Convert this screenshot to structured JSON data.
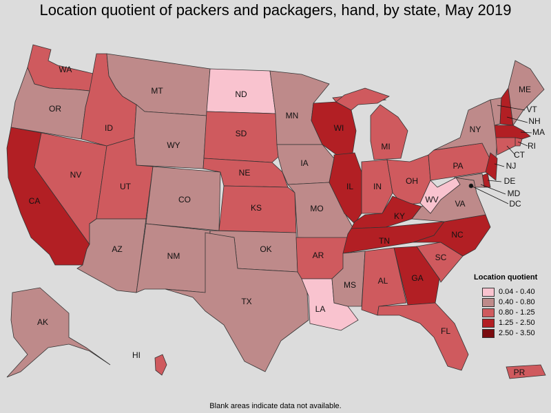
{
  "title": "Location quotient of packers and packagers, hand, by state, May 2019",
  "note": "Blank areas indicate data not available.",
  "legend": {
    "title": "Location quotient",
    "items": [
      {
        "label": "0.04 - 0.40",
        "color": "#f9c3cf"
      },
      {
        "label": "0.40 - 0.80",
        "color": "#be8a8a"
      },
      {
        "label": "0.80 - 1.25",
        "color": "#cf5a5e"
      },
      {
        "label": "1.25 - 2.50",
        "color": "#b21f24"
      },
      {
        "label": "2.50 - 3.50",
        "color": "#7a0c10"
      }
    ]
  },
  "map": {
    "background": "#dcdcdc",
    "states": [
      {
        "abbr": "WA",
        "class": 3
      },
      {
        "abbr": "OR",
        "class": 2
      },
      {
        "abbr": "CA",
        "class": 4
      },
      {
        "abbr": "NV",
        "class": 3
      },
      {
        "abbr": "ID",
        "class": 3
      },
      {
        "abbr": "MT",
        "class": 2
      },
      {
        "abbr": "WY",
        "class": 2
      },
      {
        "abbr": "UT",
        "class": 3
      },
      {
        "abbr": "AZ",
        "class": 2
      },
      {
        "abbr": "CO",
        "class": 2
      },
      {
        "abbr": "NM",
        "class": 2
      },
      {
        "abbr": "ND",
        "class": 1
      },
      {
        "abbr": "SD",
        "class": 3
      },
      {
        "abbr": "NE",
        "class": 3
      },
      {
        "abbr": "KS",
        "class": 3
      },
      {
        "abbr": "OK",
        "class": 2
      },
      {
        "abbr": "TX",
        "class": 2
      },
      {
        "abbr": "MN",
        "class": 2
      },
      {
        "abbr": "IA",
        "class": 2
      },
      {
        "abbr": "MO",
        "class": 2
      },
      {
        "abbr": "AR",
        "class": 3
      },
      {
        "abbr": "LA",
        "class": 1
      },
      {
        "abbr": "WI",
        "class": 4
      },
      {
        "abbr": "IL",
        "class": 4
      },
      {
        "abbr": "MI",
        "class": 3
      },
      {
        "abbr": "IN",
        "class": 3
      },
      {
        "abbr": "OH",
        "class": 3
      },
      {
        "abbr": "KY",
        "class": 4
      },
      {
        "abbr": "TN",
        "class": 4
      },
      {
        "abbr": "MS",
        "class": 2
      },
      {
        "abbr": "AL",
        "class": 3
      },
      {
        "abbr": "GA",
        "class": 4
      },
      {
        "abbr": "FL",
        "class": 3
      },
      {
        "abbr": "SC",
        "class": 3
      },
      {
        "abbr": "NC",
        "class": 4
      },
      {
        "abbr": "VA",
        "class": 2
      },
      {
        "abbr": "WV",
        "class": 1
      },
      {
        "abbr": "PA",
        "class": 3
      },
      {
        "abbr": "NY",
        "class": 2
      },
      {
        "abbr": "VT",
        "class": 2
      },
      {
        "abbr": "NH",
        "class": 4
      },
      {
        "abbr": "ME",
        "class": 2
      },
      {
        "abbr": "MA",
        "class": 4
      },
      {
        "abbr": "RI",
        "class": 3
      },
      {
        "abbr": "CT",
        "class": 3
      },
      {
        "abbr": "NJ",
        "class": 4
      },
      {
        "abbr": "DE",
        "class": 4
      },
      {
        "abbr": "MD",
        "class": 2
      },
      {
        "abbr": "DC",
        "class": 0
      },
      {
        "abbr": "AK",
        "class": 2
      },
      {
        "abbr": "HI",
        "class": 3
      },
      {
        "abbr": "PR",
        "class": 3
      }
    ]
  }
}
